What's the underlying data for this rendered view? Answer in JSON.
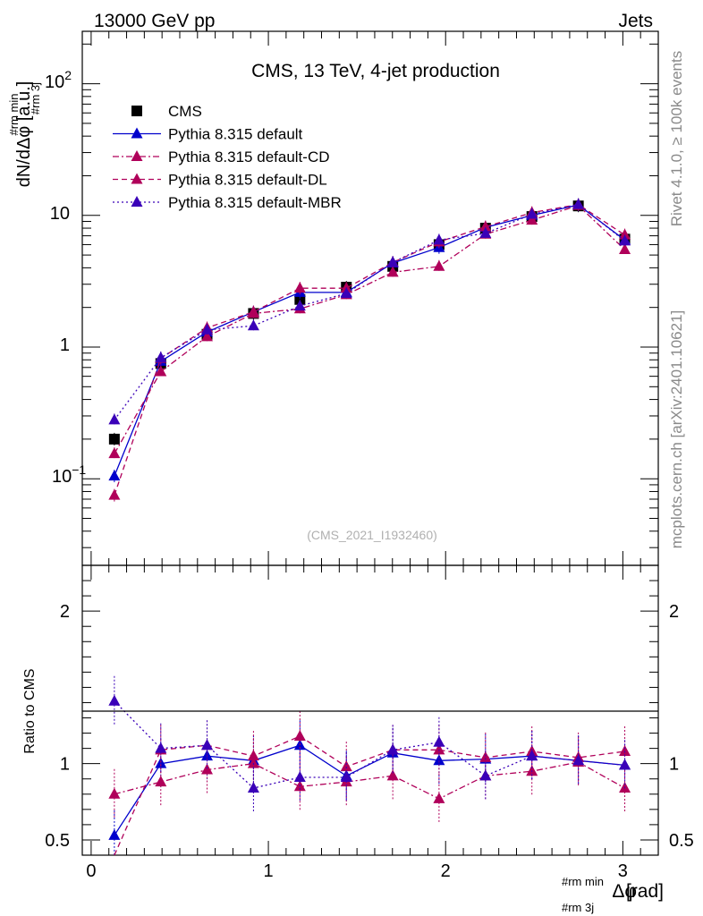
{
  "header": {
    "left": "13000 GeV pp",
    "right": "Jets"
  },
  "side_labels": {
    "top": "Rivet 4.1.0, ≥ 100k events",
    "bottom": "mcplots.cern.ch [arXiv:2401.10621]"
  },
  "colors": {
    "cms": "#000000",
    "default": "#0000cc",
    "cd": "#b0005a",
    "dl": "#b0005a",
    "mbr": "#3a00b8"
  },
  "chart_data": [
    {
      "type": "line",
      "panel": "main",
      "title": "CMS, 13 TeV, 4-jet production",
      "ylabel": "dN/dΔφ [a.u.]",
      "ylabel_sup": "#rm min",
      "ylabel_sub": "#rm 3j",
      "yscale": "log",
      "xlim": [
        -0.05,
        3.2
      ],
      "ylim": [
        0.022,
        250
      ],
      "ytick_labels": {
        "t1": "10",
        "t1e": "−1",
        "t2": "1",
        "t3": "10",
        "t4": "10",
        "t4e": "2"
      },
      "watermark": "(CMS_2021_I1932460)",
      "legend": [
        "CMS",
        "Pythia 8.315 default",
        "Pythia 8.315 default-CD",
        "Pythia 8.315 default-DL",
        "Pythia 8.315 default-MBR"
      ],
      "x": [
        0.131,
        0.393,
        0.654,
        0.916,
        1.178,
        1.44,
        1.702,
        1.963,
        2.225,
        2.487,
        2.749,
        3.011
      ],
      "series": [
        {
          "name": "CMS",
          "values": [
            0.2,
            0.75,
            1.25,
            1.8,
            2.3,
            2.85,
            4.1,
            6.0,
            8.0,
            9.8,
            11.8,
            6.6
          ]
        },
        {
          "name": "Pythia 8.315 default",
          "values": [
            0.105,
            0.78,
            1.3,
            1.85,
            2.6,
            2.6,
            4.35,
            5.7,
            8.1,
            10.0,
            12.0,
            6.5
          ]
        },
        {
          "name": "Pythia 8.315 default-CD",
          "values": [
            0.155,
            0.65,
            1.2,
            1.8,
            1.95,
            2.5,
            3.7,
            4.1,
            7.2,
            9.2,
            11.9,
            5.5
          ]
        },
        {
          "name": "Pythia 8.315 default-DL",
          "values": [
            0.075,
            0.82,
            1.4,
            1.85,
            2.8,
            2.8,
            4.4,
            6.3,
            8.2,
            10.5,
            12.1,
            7.1
          ]
        },
        {
          "name": "Pythia 8.315 default-MBR",
          "values": [
            0.28,
            0.83,
            1.35,
            1.45,
            2.05,
            2.55,
            4.4,
            6.5,
            7.3,
            10.2,
            12.1,
            6.4
          ]
        }
      ]
    },
    {
      "type": "line",
      "panel": "ratio",
      "ylabel": "Ratio to CMS",
      "xlabel": "Δφ [rad]",
      "xlabel_sup": "#rm min",
      "xlabel_sub": "#rm 3j",
      "xlim": [
        -0.05,
        3.2
      ],
      "ylim": [
        0.4,
        2.3
      ],
      "x_ticks": [
        0,
        1,
        2,
        3
      ],
      "y_ticks": [
        0.5,
        1,
        2
      ],
      "x": [
        0.131,
        0.393,
        0.654,
        0.916,
        1.178,
        1.44,
        1.702,
        1.963,
        2.225,
        2.487,
        2.749,
        3.011
      ],
      "series": [
        {
          "name": "Pythia 8.315 default",
          "values": [
            0.53,
            1.0,
            1.05,
            1.02,
            1.12,
            0.92,
            1.07,
            1.02,
            1.03,
            1.05,
            1.02,
            0.99
          ]
        },
        {
          "name": "Pythia 8.315 default-CD",
          "values": [
            0.8,
            0.88,
            0.96,
            1.0,
            0.85,
            0.88,
            0.92,
            0.77,
            0.92,
            0.95,
            1.01,
            0.84
          ]
        },
        {
          "name": "Pythia 8.315 default-DL",
          "values": [
            0.37,
            1.09,
            1.12,
            1.05,
            1.18,
            0.98,
            1.09,
            1.09,
            1.04,
            1.08,
            1.04,
            1.08
          ]
        },
        {
          "name": "Pythia 8.315 default-MBR",
          "values": [
            1.41,
            1.1,
            1.12,
            0.84,
            0.91,
            0.91,
            1.09,
            1.14,
            0.92,
            1.05,
            1.02,
            0.99
          ]
        }
      ]
    }
  ]
}
